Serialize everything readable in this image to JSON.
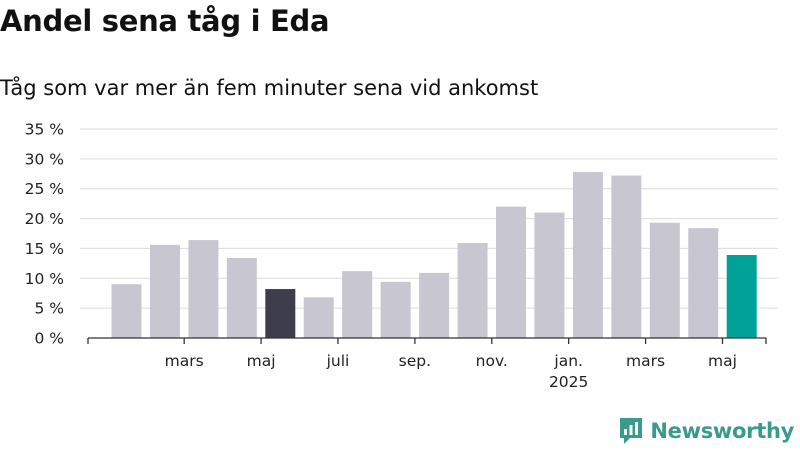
{
  "header": {
    "title": "Andel sena tåg i Eda",
    "subtitle": "Tåg som var mer än fem minuter sena vid ankomst"
  },
  "brand": {
    "name": "Newsworthy",
    "logo_icon": "newsworthy-chart-icon",
    "color": "#3a9a8c"
  },
  "colors": {
    "bar_default": "#c8c7d1",
    "bar_highlight_dark": "#3e3d4b",
    "bar_latest": "#00a199"
  },
  "chart_data": {
    "type": "bar",
    "title": "Andel sena tåg i Eda",
    "subtitle": "Tåg som var mer än fem minuter sena vid ankomst",
    "xlabel": "",
    "ylabel": "",
    "ylim": [
      0,
      35
    ],
    "yticks": [
      0,
      5,
      10,
      15,
      20,
      25,
      30,
      35
    ],
    "ytick_labels": [
      "0 %",
      "5 %",
      "10 %",
      "15 %",
      "20 %",
      "25 %",
      "30 %",
      "35 %"
    ],
    "grid": true,
    "categories": [
      "2024-02",
      "2024-03",
      "2024-04",
      "2024-05",
      "2024-06",
      "2024-07",
      "2024-08",
      "2024-09",
      "2024-10",
      "2024-11",
      "2024-12",
      "2025-01",
      "2025-02",
      "2025-03",
      "2025-04",
      "2025-05",
      "2025-06"
    ],
    "values": [
      9.0,
      15.6,
      16.4,
      13.4,
      8.2,
      6.8,
      11.2,
      9.4,
      10.9,
      15.9,
      22.0,
      21.0,
      27.8,
      27.2,
      19.3,
      18.4,
      13.9
    ],
    "bar_colors": [
      "#c8c7d1",
      "#c8c7d1",
      "#c8c7d1",
      "#c8c7d1",
      "#3e3d4b",
      "#c8c7d1",
      "#c8c7d1",
      "#c8c7d1",
      "#c8c7d1",
      "#c8c7d1",
      "#c8c7d1",
      "#c8c7d1",
      "#c8c7d1",
      "#c8c7d1",
      "#c8c7d1",
      "#c8c7d1",
      "#00a199"
    ],
    "xtick_labels": [
      {
        "category": "2024-03",
        "label": "mars"
      },
      {
        "category": "2024-05",
        "label": "maj"
      },
      {
        "category": "2024-07",
        "label": "juli"
      },
      {
        "category": "2024-09",
        "label": "sep."
      },
      {
        "category": "2024-11",
        "label": "nov."
      },
      {
        "category": "2025-01",
        "label": "jan.",
        "sublabel": "2025"
      },
      {
        "category": "2025-03",
        "label": "mars"
      },
      {
        "category": "2025-05",
        "label": "maj"
      }
    ]
  }
}
